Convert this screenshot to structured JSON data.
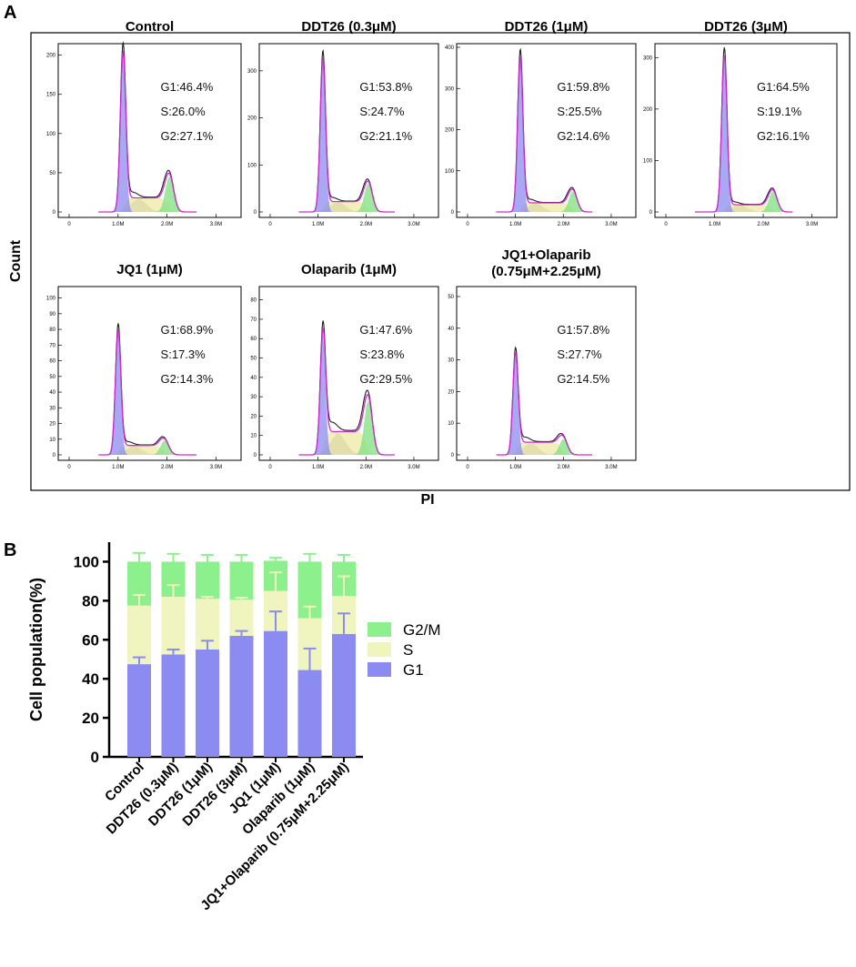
{
  "panels": {
    "a_label": "A",
    "b_label": "B"
  },
  "panel_a": {
    "ylabel": "Count",
    "xlabel": "PI",
    "colors": {
      "g1": "#8b8bef",
      "s": "#ede9a7",
      "g2": "#7fe07f",
      "gray": "#a8a8a8",
      "raw": "#222222",
      "fit": "#d12bd1"
    },
    "x_ticks": [
      "0",
      "1.0M",
      "2.0M",
      "3.0M"
    ],
    "histograms": [
      {
        "title": "Control",
        "ymax": 210,
        "y_ticks": [
          0,
          50,
          100,
          150,
          200
        ],
        "g1_pos": 1.1,
        "g2_pos": 2.05,
        "g1_peak": 200,
        "g2_peak": 45,
        "s_level": 18,
        "stats": [
          "G1:46.4%",
          "S:26.0%",
          "G2:27.1%"
        ],
        "stat_values": {
          "G1": 46.4,
          "S": 26.0,
          "G2": 27.1
        }
      },
      {
        "title": "DDT26 (0.3μM)",
        "ymax": 350,
        "y_ticks": [
          0,
          100,
          200,
          300
        ],
        "g1_pos": 1.1,
        "g2_pos": 2.05,
        "g1_peak": 320,
        "g2_peak": 60,
        "s_level": 22,
        "stats": [
          "G1:53.8%",
          "S:24.7%",
          "G2:21.1%"
        ],
        "stat_values": {
          "G1": 53.8,
          "S": 24.7,
          "G2": 21.1
        }
      },
      {
        "title": "DDT26 (1μM)",
        "ymax": 400,
        "y_ticks": [
          0,
          100,
          200,
          300,
          400
        ],
        "g1_pos": 1.1,
        "g2_pos": 2.2,
        "g1_peak": 370,
        "g2_peak": 50,
        "s_level": 22,
        "stats": [
          "G1:59.8%",
          "S:25.5%",
          "G2:14.6%"
        ],
        "stat_values": {
          "G1": 59.8,
          "S": 25.5,
          "G2": 14.6
        }
      },
      {
        "title": "DDT26 (3μM)",
        "ymax": 320,
        "y_ticks": [
          0,
          100,
          200,
          300
        ],
        "g1_pos": 1.2,
        "g2_pos": 2.2,
        "g1_peak": 300,
        "g2_peak": 40,
        "s_level": 14,
        "stats": [
          "G1:64.5%",
          "S:19.1%",
          "G2:16.1%"
        ],
        "stat_values": {
          "G1": 64.5,
          "S": 19.1,
          "G2": 16.1
        }
      },
      {
        "title": "JQ1 (1μM)",
        "ymax": 105,
        "y_ticks": [
          0,
          10,
          20,
          30,
          40,
          50,
          60,
          70,
          80,
          90,
          100
        ],
        "g1_pos": 1.0,
        "g2_pos": 1.95,
        "g1_peak": 78,
        "g2_peak": 9,
        "s_level": 6,
        "stats": [
          "G1:68.9%",
          "S:17.3%",
          "G2:14.3%"
        ],
        "stat_values": {
          "G1": 68.9,
          "S": 17.3,
          "G2": 14.3
        }
      },
      {
        "title": "Olaparib (1μM)",
        "ymax": 85,
        "y_ticks": [
          0,
          10,
          20,
          30,
          40,
          50,
          60,
          70,
          80
        ],
        "g1_pos": 1.1,
        "g2_pos": 2.05,
        "g1_peak": 62,
        "g2_peak": 28,
        "s_level": 12,
        "stats": [
          "G1:47.6%",
          "S:23.8%",
          "G2:29.5%"
        ],
        "stat_values": {
          "G1": 47.6,
          "S": 23.8,
          "G2": 29.5
        }
      },
      {
        "title_lines": [
          "JQ1+Olaparib",
          "(0.75μM+2.25μM)"
        ],
        "ymax": 52,
        "y_ticks": [
          0,
          10,
          20,
          30,
          40,
          50
        ],
        "g1_pos": 1.0,
        "g2_pos": 2.0,
        "g1_peak": 31,
        "g2_peak": 5,
        "s_level": 4,
        "stats": [
          "G1:57.8%",
          "S:27.7%",
          "G2:14.5%"
        ],
        "stat_values": {
          "G1": 57.8,
          "S": 27.7,
          "G2": 14.5
        }
      }
    ]
  },
  "chart_data": {
    "type": "bar",
    "stacked": true,
    "ylabel": "Cell population(%)",
    "xlabel": "",
    "ylim": [
      0,
      110
    ],
    "y_ticks": [
      0,
      20,
      40,
      60,
      80,
      100
    ],
    "categories": [
      "Control",
      "DDT26 (0.3μM)",
      "DDT26 (1μM)",
      "DDT26 (3μM)",
      "JQ1 (1μM)",
      "Olaparib (1μM)",
      "JQ1+Olaparib (0.75μM+2.25μM)"
    ],
    "series": [
      {
        "name": "G1",
        "color": "#8b8bf1",
        "values": [
          47.5,
          52.5,
          55.0,
          62.0,
          64.5,
          44.5,
          63.0
        ],
        "error": [
          3.5,
          2.5,
          4.5,
          2.5,
          10.0,
          11.0,
          10.5
        ]
      },
      {
        "name": "S",
        "color": "#f0f5c0",
        "values": [
          30.0,
          29.5,
          26.0,
          18.5,
          20.5,
          26.5,
          19.5
        ],
        "error": [
          5.5,
          6.0,
          1.0,
          1.0,
          9.5,
          6.0,
          10.0
        ]
      },
      {
        "name": "G2/M",
        "color": "#8cf08c",
        "values": [
          22.5,
          18.0,
          19.0,
          19.5,
          15.5,
          29.0,
          17.5
        ],
        "error": [
          4.5,
          4.0,
          3.5,
          3.5,
          1.5,
          4.0,
          3.5
        ]
      }
    ],
    "legend": {
      "position": "right",
      "items": [
        "G2/M",
        "S",
        "G1"
      ]
    }
  }
}
